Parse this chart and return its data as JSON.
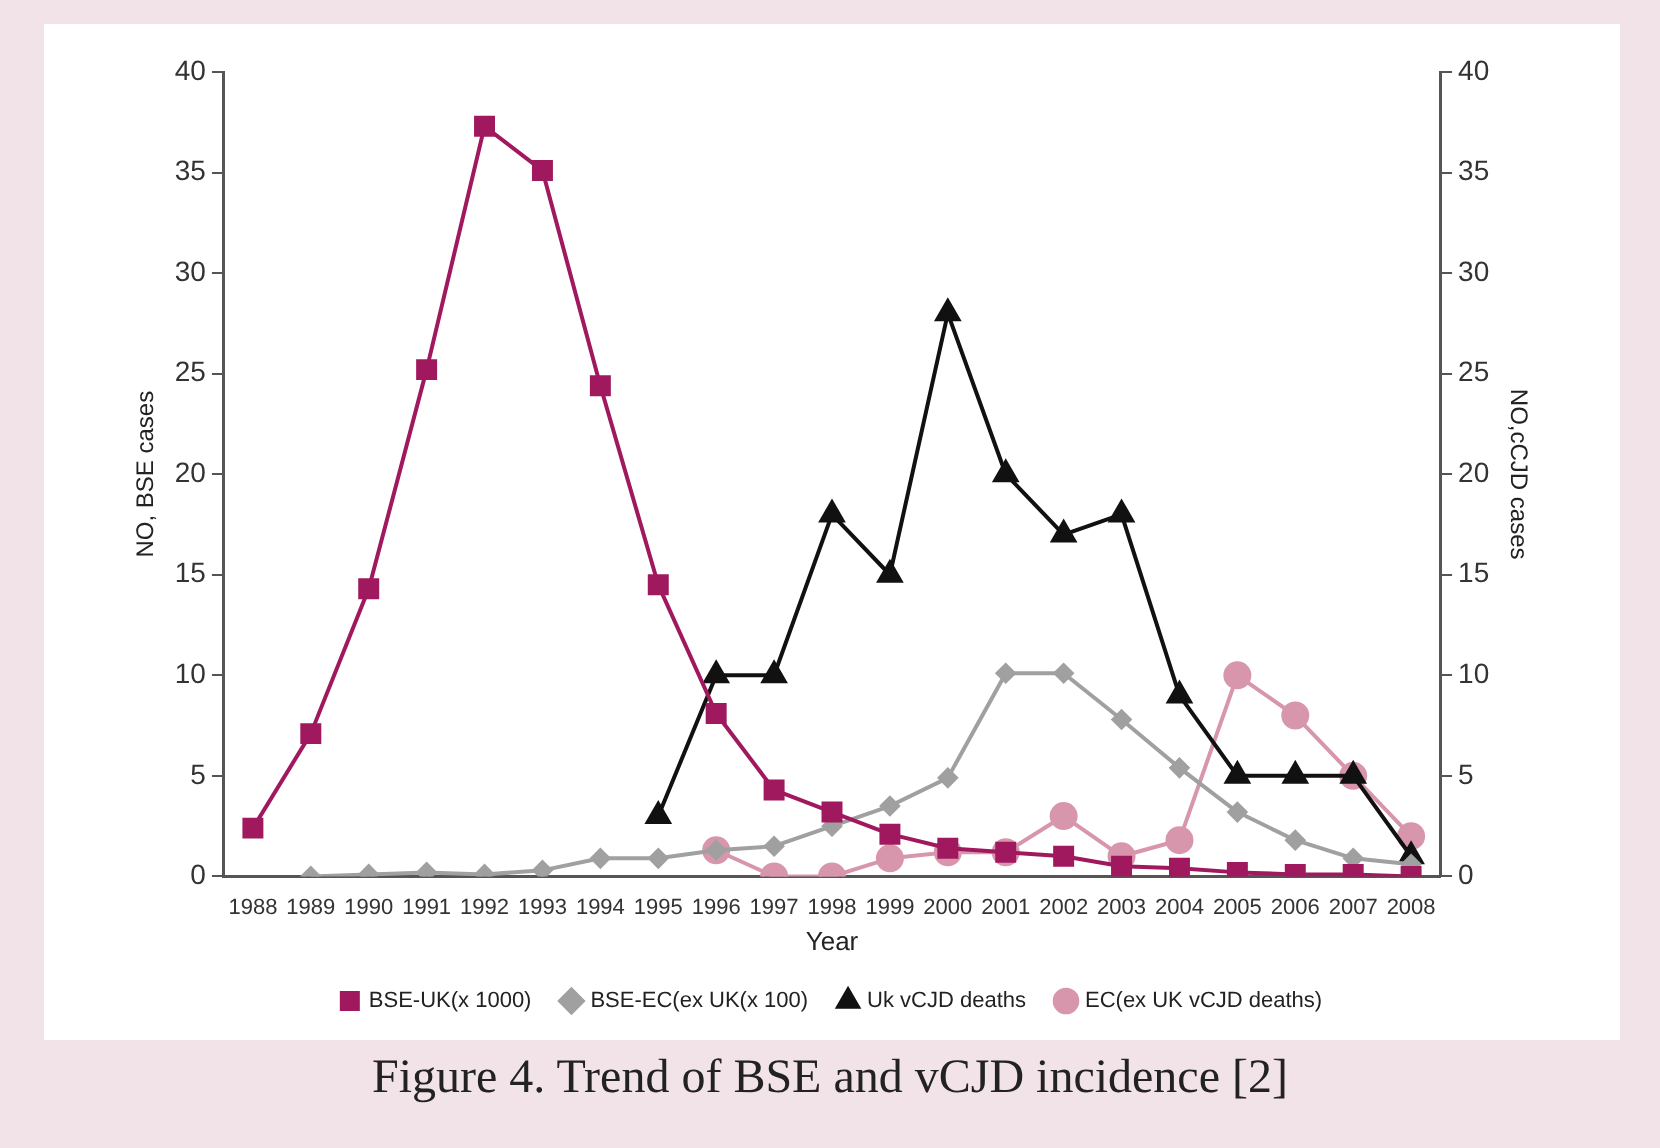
{
  "chart_data": {
    "type": "line",
    "title": "Figure 4. Trend of BSE and vCJD incidence [2]",
    "xlabel": "Year",
    "ylabel": "NO, BSE cases",
    "y2label": "NO,cCJD cases",
    "categories": [
      "1988",
      "1989",
      "1990",
      "1991",
      "1992",
      "1993",
      "1994",
      "1995",
      "1996",
      "1997",
      "1998",
      "1999",
      "2000",
      "2001",
      "2002",
      "2003",
      "2004",
      "2005",
      "2006",
      "2007",
      "2008"
    ],
    "ylim": [
      0,
      40
    ],
    "yticks": [
      0,
      5,
      10,
      15,
      20,
      25,
      30,
      35,
      40
    ],
    "y2lim": [
      0,
      40
    ],
    "y2ticks": [
      0,
      5,
      10,
      15,
      20,
      25,
      30,
      35,
      40
    ],
    "grid": false,
    "legend": "bottom",
    "line_style": "solid",
    "series": [
      {
        "name": "BSE-UK(x 1000)",
        "color": "#a0195f",
        "marker": "square",
        "values": [
          2.4,
          7.1,
          14.3,
          25.2,
          37.3,
          35.1,
          24.4,
          14.5,
          8.1,
          4.3,
          3.2,
          2.1,
          1.4,
          1.2,
          1.0,
          0.5,
          0.4,
          0.2,
          0.1,
          0.1,
          0
        ]
      },
      {
        "name": "BSE-EC(ex UK(x 100)",
        "color": "#a0a0a0",
        "marker": "diamond",
        "values": [
          null,
          0,
          0.1,
          0.2,
          0.1,
          0.3,
          0.9,
          0.9,
          1.3,
          1.5,
          2.5,
          3.5,
          4.9,
          10.1,
          10.1,
          7.8,
          5.4,
          3.2,
          1.8,
          0.9,
          0.6
        ]
      },
      {
        "name": "Uk vCJD deaths",
        "color": "#111111",
        "marker": "triangle",
        "axis": "y2",
        "values": [
          null,
          null,
          null,
          null,
          null,
          null,
          null,
          3,
          10,
          10,
          18,
          15,
          28,
          20,
          17,
          18,
          9,
          5,
          5,
          5,
          1
        ]
      },
      {
        "name": "EC(ex UK vCJD deaths)",
        "color": "#d896ac",
        "marker": "circle",
        "axis": "y2",
        "values": [
          null,
          null,
          null,
          null,
          null,
          null,
          null,
          null,
          1.3,
          0,
          0,
          0.9,
          1.2,
          1.2,
          3,
          1,
          1.8,
          10,
          8,
          5,
          2
        ]
      }
    ]
  }
}
